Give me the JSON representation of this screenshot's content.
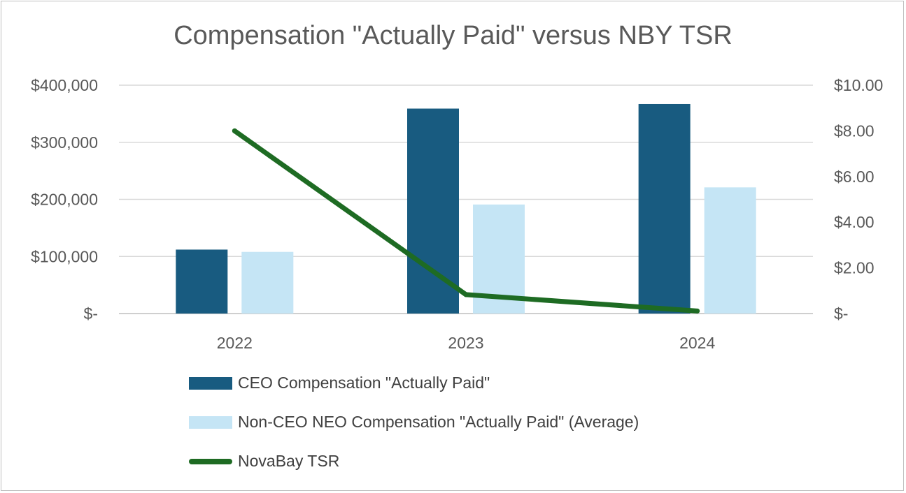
{
  "chart_data": {
    "type": "bar",
    "title": "Compensation \"Actually Paid\" versus NBY TSR",
    "categories": [
      "2022",
      "2023",
      "2024"
    ],
    "series": [
      {
        "name": "CEO Compensation \"Actually Paid\"",
        "type": "bar",
        "axis": "left",
        "color": "#185b80",
        "values": [
          112000,
          359000,
          367000
        ]
      },
      {
        "name": "Non-CEO NEO Compensation \"Actually Paid\" (Average)",
        "type": "bar",
        "axis": "left",
        "color": "#c5e5f5",
        "values": [
          108000,
          191000,
          221000
        ]
      },
      {
        "name": "NovaBay TSR",
        "type": "line",
        "axis": "right",
        "color": "#1e6b23",
        "values": [
          8.0,
          0.83,
          0.11
        ]
      }
    ],
    "left_axis": {
      "min": 0,
      "max": 400000,
      "ticks": [
        0,
        100000,
        200000,
        300000,
        400000
      ],
      "tick_labels": [
        "$-",
        "$100,000",
        "$200,000",
        "$300,000",
        "$400,000"
      ]
    },
    "right_axis": {
      "min": 0,
      "max": 10,
      "ticks": [
        0,
        2,
        4,
        6,
        8,
        10
      ],
      "tick_labels": [
        "$-",
        "$2.00",
        "$4.00",
        "$6.00",
        "$8.00",
        "$10.00"
      ]
    },
    "grid": true,
    "legend_position": "bottom"
  }
}
